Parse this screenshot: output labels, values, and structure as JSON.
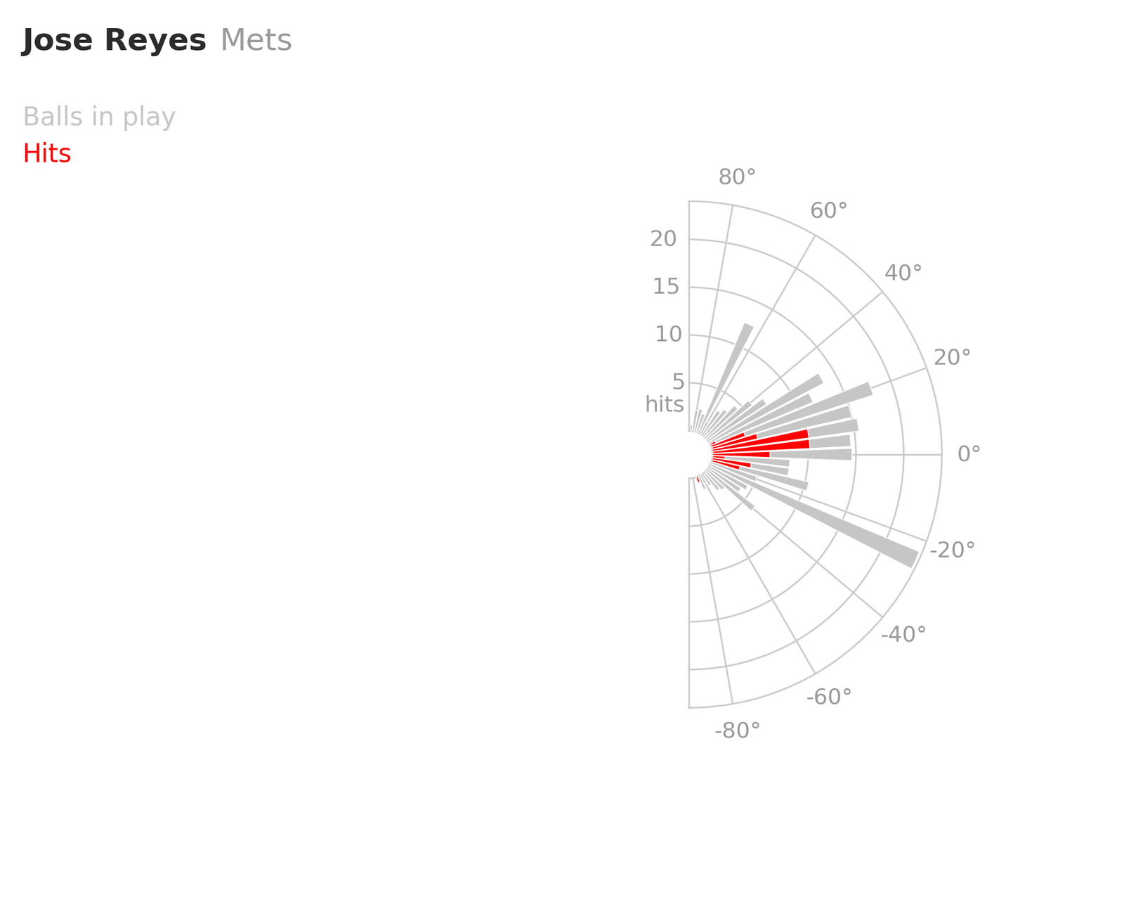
{
  "chart_data": {
    "type": "polar_bar",
    "title": "Jose Reyes",
    "subtitle": "Mets",
    "annotations": [
      {
        "text": "hits"
      }
    ],
    "stacked": false,
    "x": [
      -70,
      -65,
      -60,
      -55,
      -50,
      -45,
      -40,
      -35,
      -30,
      -25,
      -20,
      -15,
      -10,
      -5,
      0,
      5,
      10,
      15,
      20,
      25,
      30,
      35,
      40,
      45,
      50,
      55,
      60,
      65,
      70,
      75,
      80,
      85
    ],
    "series": [
      {
        "name": "Balls in play",
        "color": "#c6c6c6",
        "values": [
          0.6,
          1.5,
          1.0,
          1.4,
          2.3,
          2.6,
          6.3,
          4.0,
          4.5,
          23.7,
          5.0,
          10.4,
          8.1,
          8.1,
          14.6,
          14.5,
          15.5,
          15.0,
          17.8,
          11.6,
          13.5,
          7.2,
          5.9,
          4.5,
          3.5,
          3.0,
          1.4,
          12.5,
          2.0,
          2.4,
          2.2,
          0.6
        ]
      },
      {
        "name": "Hits",
        "color": "#ff0000",
        "values": [
          0.6,
          0,
          0,
          0,
          0,
          0,
          0,
          0,
          0,
          0,
          0,
          3.0,
          4.1,
          1.3,
          6.0,
          10.2,
          10.2,
          4.9,
          3.7,
          0.6,
          0,
          0,
          0,
          0,
          0,
          0,
          0,
          0,
          0,
          0,
          0,
          0
        ]
      }
    ],
    "xlim": [
      -90,
      90
    ],
    "xticks": [
      {
        "value": -80,
        "label": "-80°"
      },
      {
        "value": -60,
        "label": "-60°"
      },
      {
        "value": -40,
        "label": "-40°"
      },
      {
        "value": -20,
        "label": "-20°"
      },
      {
        "value": 0,
        "label": "0°"
      },
      {
        "value": 20,
        "label": "20°"
      },
      {
        "value": 40,
        "label": "40°"
      },
      {
        "value": 60,
        "label": "60°"
      },
      {
        "value": 80,
        "label": "80°"
      }
    ],
    "ylim": [
      0,
      24
    ],
    "yticks": [
      5,
      10,
      15,
      20
    ],
    "grid": true
  }
}
